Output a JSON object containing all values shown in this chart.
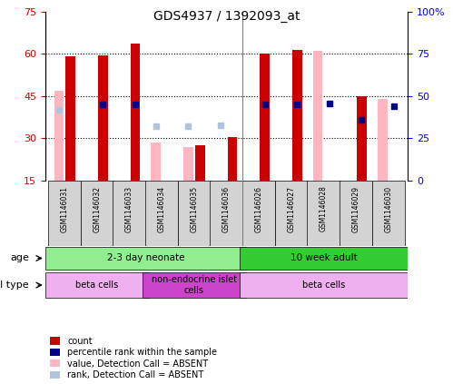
{
  "title": "GDS4937 / 1392093_at",
  "samples": [
    "GSM1146031",
    "GSM1146032",
    "GSM1146033",
    "GSM1146034",
    "GSM1146035",
    "GSM1146036",
    "GSM1146026",
    "GSM1146027",
    "GSM1146028",
    "GSM1146029",
    "GSM1146030"
  ],
  "ylim_left": [
    15,
    75
  ],
  "ylim_right": [
    0,
    100
  ],
  "yticks_left": [
    15,
    30,
    45,
    60,
    75
  ],
  "yticks_right": [
    0,
    25,
    50,
    75,
    100
  ],
  "ytick_labels_left": [
    "15",
    "30",
    "45",
    "60",
    "75"
  ],
  "ytick_labels_right": [
    "0",
    "25",
    "50",
    "75",
    "100%"
  ],
  "red_bars": [
    59.0,
    59.5,
    63.5,
    null,
    27.5,
    30.5,
    60.0,
    61.5,
    null,
    45.0,
    null
  ],
  "pink_bars": [
    47.0,
    null,
    null,
    28.5,
    27.0,
    null,
    null,
    null,
    61.0,
    null,
    44.0
  ],
  "blue_squares_val": [
    null,
    45.0,
    45.0,
    null,
    null,
    null,
    45.0,
    45.0,
    45.5,
    36.0,
    44.0
  ],
  "light_blue_squares_val": [
    42.0,
    null,
    null,
    32.0,
    32.0,
    32.5,
    null,
    null,
    null,
    null,
    null
  ],
  "age_groups": [
    {
      "label": "2-3 day neonate",
      "start": 0,
      "end": 6,
      "color": "#90EE90"
    },
    {
      "label": "10 week adult",
      "start": 6,
      "end": 11,
      "color": "#32CD32"
    }
  ],
  "cell_type_groups": [
    {
      "label": "beta cells",
      "start": 0,
      "end": 3,
      "color": "#EEB0EE"
    },
    {
      "label": "non-endocrine islet\ncells",
      "start": 3,
      "end": 6,
      "color": "#CC44CC"
    },
    {
      "label": "beta cells",
      "start": 6,
      "end": 11,
      "color": "#EEB0EE"
    }
  ],
  "legend_items": [
    {
      "color": "#CC0000",
      "marker": "s",
      "label": "count"
    },
    {
      "color": "#00008B",
      "marker": "s",
      "label": "percentile rank within the sample"
    },
    {
      "color": "#FFB6C1",
      "marker": "s",
      "label": "value, Detection Call = ABSENT"
    },
    {
      "color": "#B0C4DE",
      "marker": "s",
      "label": "rank, Detection Call = ABSENT"
    }
  ],
  "red_color": "#CC0000",
  "pink_color": "#FFB6C1",
  "blue_color": "#00008B",
  "light_blue_color": "#B0C4DE",
  "plot_bg": "#FFFFFF",
  "label_box_color": "#D3D3D3",
  "sep_line_color": "#808080"
}
